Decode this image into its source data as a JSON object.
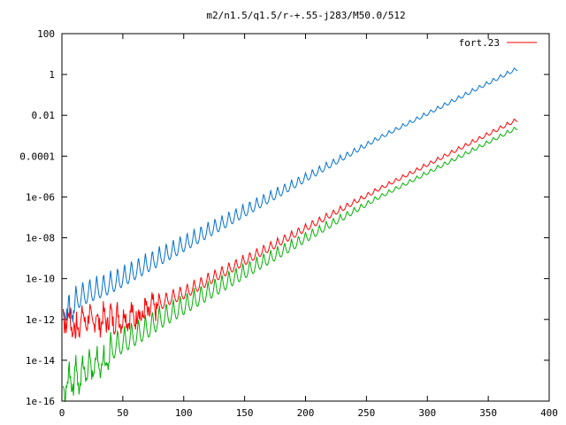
{
  "chart_data": {
    "type": "line",
    "title": "m2/n1.5/q1.5/r-+.55-j283/M50.0/512",
    "xlabel": "",
    "ylabel": "",
    "xlim": [
      0,
      400
    ],
    "ylim_log10": [
      -16,
      2
    ],
    "y_scale": "log",
    "grid": false,
    "legend_position": "top-right",
    "x_ticks": [
      0,
      50,
      100,
      150,
      200,
      250,
      300,
      350,
      400
    ],
    "x_tick_labels": [
      "0",
      "50",
      "100",
      "150",
      "200",
      "250",
      "300",
      "350",
      "400"
    ],
    "y_ticks_log10": [
      -16,
      -14,
      -12,
      -10,
      -8,
      -6,
      -4,
      -2,
      0,
      2
    ],
    "y_tick_labels": [
      "1e-16",
      "1e-14",
      "1e-12",
      "1e-10",
      "1e-08",
      "1e-06",
      "0.0001",
      "0.01",
      "1",
      "100"
    ],
    "series": [
      {
        "color": "#0070d0",
        "x": [
          1,
          10,
          20,
          30,
          40,
          50,
          60,
          70,
          80,
          90,
          100,
          110,
          120,
          130,
          140,
          150,
          160,
          170,
          180,
          190,
          200,
          210,
          220,
          230,
          240,
          250,
          260,
          270,
          280,
          290,
          300,
          310,
          320,
          330,
          340,
          350,
          360,
          370,
          374
        ],
        "y_log10": [
          -10.4,
          -10.3,
          -10.0,
          -9.8,
          -9.6,
          -9.3,
          -9.0,
          -8.7,
          -8.4,
          -8.1,
          -7.8,
          -7.5,
          -7.2,
          -6.9,
          -6.6,
          -6.3,
          -6.0,
          -5.7,
          -5.4,
          -5.1,
          -4.8,
          -4.5,
          -4.2,
          -3.9,
          -3.6,
          -3.3,
          -3.0,
          -2.7,
          -2.4,
          -2.1,
          -1.8,
          -1.5,
          -1.2,
          -0.9,
          -0.6,
          -0.3,
          0.0,
          0.3,
          0.4
        ]
      },
      {
        "name": "fort.23",
        "color": "#ff0000",
        "x": [
          1,
          10,
          20,
          30,
          40,
          50,
          60,
          70,
          80,
          90,
          100,
          110,
          120,
          130,
          140,
          150,
          160,
          170,
          180,
          190,
          200,
          210,
          220,
          230,
          240,
          250,
          260,
          270,
          280,
          290,
          300,
          310,
          320,
          330,
          340,
          350,
          360,
          370,
          374
        ],
        "y_log10": [
          -11.4,
          -11.5,
          -11.4,
          -11.5,
          -11.4,
          -11.4,
          -11.3,
          -11.1,
          -10.8,
          -10.5,
          -10.3,
          -10.0,
          -9.7,
          -9.4,
          -9.1,
          -8.8,
          -8.5,
          -8.2,
          -7.9,
          -7.6,
          -7.3,
          -7.0,
          -6.7,
          -6.4,
          -6.1,
          -5.8,
          -5.5,
          -5.2,
          -4.9,
          -4.6,
          -4.3,
          -4.0,
          -3.7,
          -3.4,
          -3.1,
          -2.8,
          -2.5,
          -2.2,
          -2.1
        ]
      },
      {
        "color": "#00b000",
        "x": [
          1,
          10,
          20,
          30,
          40,
          50,
          60,
          70,
          80,
          90,
          100,
          110,
          120,
          130,
          140,
          150,
          160,
          170,
          180,
          190,
          200,
          210,
          220,
          230,
          240,
          250,
          260,
          270,
          280,
          290,
          300,
          310,
          320,
          330,
          340,
          350,
          360,
          370,
          374
        ],
        "y_log10": [
          -13.8,
          -13.6,
          -13.2,
          -12.9,
          -12.6,
          -12.3,
          -12.0,
          -11.7,
          -11.3,
          -11.0,
          -10.7,
          -10.4,
          -10.1,
          -9.8,
          -9.5,
          -9.2,
          -8.9,
          -8.6,
          -8.3,
          -8.0,
          -7.7,
          -7.4,
          -7.1,
          -6.8,
          -6.5,
          -6.2,
          -5.9,
          -5.6,
          -5.3,
          -5.0,
          -4.7,
          -4.4,
          -4.1,
          -3.8,
          -3.5,
          -3.2,
          -2.9,
          -2.6,
          -2.5
        ]
      }
    ]
  }
}
